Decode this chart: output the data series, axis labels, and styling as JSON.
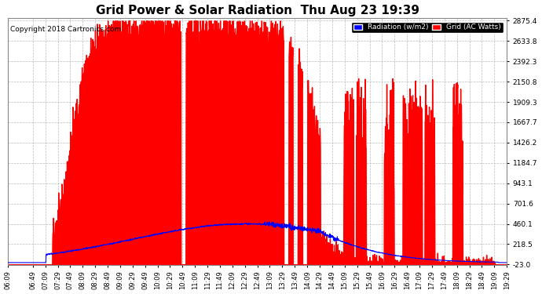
{
  "title": "Grid Power & Solar Radiation  Thu Aug 23 19:39",
  "copyright": "Copyright 2018 Cartronics.com",
  "legend_radiation": "Radiation (w/m2)",
  "legend_grid": "Grid (AC Watts)",
  "radiation_color": "#0000ff",
  "grid_fill_color": "#ff0000",
  "background_color": "#ffffff",
  "plot_bg_color": "#ffffff",
  "text_color": "#000000",
  "ytick_labels": [
    "2875.4",
    "2633.8",
    "2392.3",
    "2150.8",
    "1909.3",
    "1667.7",
    "1426.2",
    "1184.7",
    "943.1",
    "701.6",
    "460.1",
    "218.5",
    "-23.0"
  ],
  "ymin": -23.0,
  "ymax": 2875.4,
  "xtick_labels": [
    "06:09",
    "06:49",
    "07:09",
    "07:29",
    "07:49",
    "08:09",
    "08:29",
    "08:49",
    "09:09",
    "09:29",
    "09:49",
    "10:09",
    "10:29",
    "10:49",
    "11:09",
    "11:29",
    "11:49",
    "12:09",
    "12:29",
    "12:49",
    "13:09",
    "13:29",
    "13:49",
    "14:09",
    "14:29",
    "14:49",
    "15:09",
    "15:29",
    "15:49",
    "16:09",
    "16:29",
    "16:49",
    "17:09",
    "17:29",
    "17:49",
    "18:09",
    "18:29",
    "18:49",
    "19:09",
    "19:29"
  ],
  "figsize": [
    6.9,
    3.75
  ],
  "dpi": 100
}
